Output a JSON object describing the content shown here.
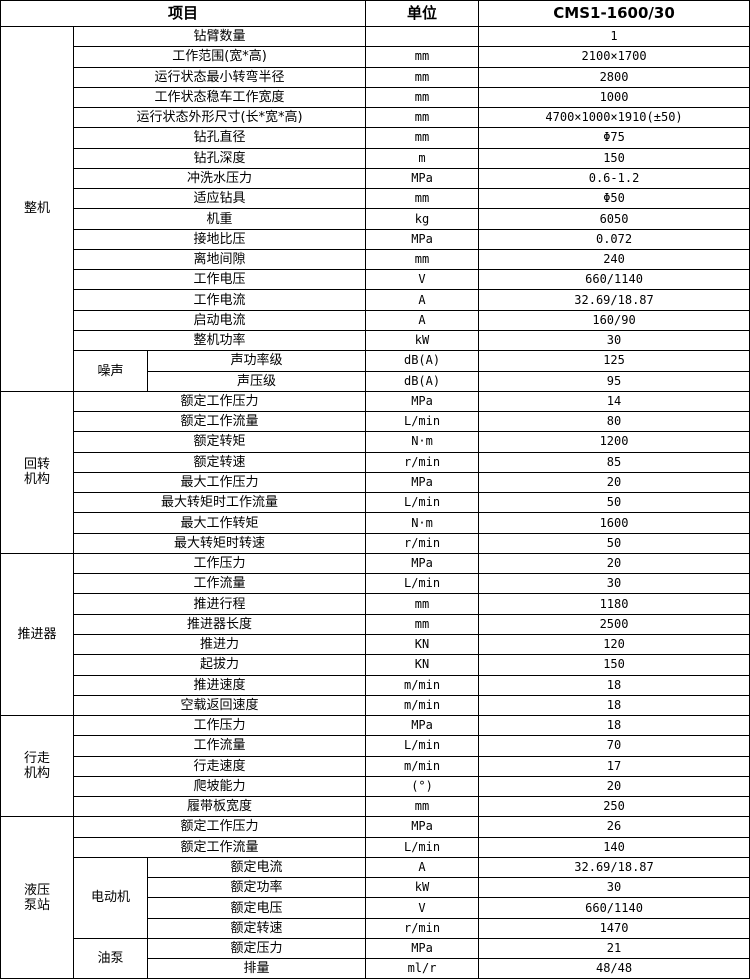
{
  "header": {
    "item": "项目",
    "unit": "单位",
    "model": "CMS1-1600/30"
  },
  "rows": [
    {
      "group": "整机",
      "sub": "",
      "item": "钻臂数量",
      "unit": "",
      "value": "1"
    },
    {
      "group": "整机",
      "sub": "",
      "item": "工作范围(宽*高)",
      "unit": "mm",
      "value": "2100×1700"
    },
    {
      "group": "整机",
      "sub": "",
      "item": "运行状态最小转弯半径",
      "unit": "mm",
      "value": "2800"
    },
    {
      "group": "整机",
      "sub": "",
      "item": "工作状态稳车工作宽度",
      "unit": "mm",
      "value": "1000"
    },
    {
      "group": "整机",
      "sub": "",
      "item": "运行状态外形尺寸(长*宽*高)",
      "unit": "mm",
      "value": "4700×1000×1910(±50)"
    },
    {
      "group": "整机",
      "sub": "",
      "item": "钻孔直径",
      "unit": "mm",
      "value": "Φ75"
    },
    {
      "group": "整机",
      "sub": "",
      "item": "钻孔深度",
      "unit": "m",
      "value": "150"
    },
    {
      "group": "整机",
      "sub": "",
      "item": "冲洗水压力",
      "unit": "MPa",
      "value": "0.6-1.2"
    },
    {
      "group": "整机",
      "sub": "",
      "item": "适应钻具",
      "unit": "mm",
      "value": "Φ50"
    },
    {
      "group": "整机",
      "sub": "",
      "item": "机重",
      "unit": "kg",
      "value": "6050"
    },
    {
      "group": "整机",
      "sub": "",
      "item": "接地比压",
      "unit": "MPa",
      "value": "0.072"
    },
    {
      "group": "整机",
      "sub": "",
      "item": "离地间隙",
      "unit": "mm",
      "value": "240"
    },
    {
      "group": "整机",
      "sub": "",
      "item": "工作电压",
      "unit": "V",
      "value": "660/1140"
    },
    {
      "group": "整机",
      "sub": "",
      "item": "工作电流",
      "unit": "A",
      "value": "32.69/18.87"
    },
    {
      "group": "整机",
      "sub": "",
      "item": "启动电流",
      "unit": "A",
      "value": "160/90"
    },
    {
      "group": "整机",
      "sub": "",
      "item": "整机功率",
      "unit": "kW",
      "value": "30"
    },
    {
      "group": "整机",
      "sub": "噪声",
      "item": "声功率级",
      "unit": "dB(A)",
      "value": "125"
    },
    {
      "group": "整机",
      "sub": "噪声",
      "item": "声压级",
      "unit": "dB(A)",
      "value": "95"
    },
    {
      "group": "回转\n机构",
      "sub": "",
      "item": "额定工作压力",
      "unit": "MPa",
      "value": "14"
    },
    {
      "group": "回转\n机构",
      "sub": "",
      "item": "额定工作流量",
      "unit": "L/min",
      "value": "80"
    },
    {
      "group": "回转\n机构",
      "sub": "",
      "item": "额定转矩",
      "unit": "N·m",
      "value": "1200"
    },
    {
      "group": "回转\n机构",
      "sub": "",
      "item": "额定转速",
      "unit": "r/min",
      "value": "85"
    },
    {
      "group": "回转\n机构",
      "sub": "",
      "item": "最大工作压力",
      "unit": "MPa",
      "value": "20"
    },
    {
      "group": "回转\n机构",
      "sub": "",
      "item": "最大转矩时工作流量",
      "unit": "L/min",
      "value": "50"
    },
    {
      "group": "回转\n机构",
      "sub": "",
      "item": "最大工作转矩",
      "unit": "N·m",
      "value": "1600"
    },
    {
      "group": "回转\n机构",
      "sub": "",
      "item": "最大转矩时转速",
      "unit": "r/min",
      "value": "50"
    },
    {
      "group": "推进器",
      "sub": "",
      "item": "工作压力",
      "unit": "MPa",
      "value": "20"
    },
    {
      "group": "推进器",
      "sub": "",
      "item": "工作流量",
      "unit": "L/min",
      "value": "30"
    },
    {
      "group": "推进器",
      "sub": "",
      "item": "推进行程",
      "unit": "mm",
      "value": "1180"
    },
    {
      "group": "推进器",
      "sub": "",
      "item": "推进器长度",
      "unit": "mm",
      "value": "2500"
    },
    {
      "group": "推进器",
      "sub": "",
      "item": "推进力",
      "unit": "KN",
      "value": "120"
    },
    {
      "group": "推进器",
      "sub": "",
      "item": "起拔力",
      "unit": "KN",
      "value": "150"
    },
    {
      "group": "推进器",
      "sub": "",
      "item": "推进速度",
      "unit": "m/min",
      "value": "18"
    },
    {
      "group": "推进器",
      "sub": "",
      "item": "空载返回速度",
      "unit": "m/min",
      "value": "18"
    },
    {
      "group": "行走\n机构",
      "sub": "",
      "item": "工作压力",
      "unit": "MPa",
      "value": "18"
    },
    {
      "group": "行走\n机构",
      "sub": "",
      "item": "工作流量",
      "unit": "L/min",
      "value": "70"
    },
    {
      "group": "行走\n机构",
      "sub": "",
      "item": "行走速度",
      "unit": "m/min",
      "value": "17"
    },
    {
      "group": "行走\n机构",
      "sub": "",
      "item": "爬坡能力",
      "unit": "(°)",
      "value": "20"
    },
    {
      "group": "行走\n机构",
      "sub": "",
      "item": "履带板宽度",
      "unit": "mm",
      "value": "250"
    },
    {
      "group": "液压\n泵站",
      "sub": "",
      "item": "额定工作压力",
      "unit": "MPa",
      "value": "26"
    },
    {
      "group": "液压\n泵站",
      "sub": "",
      "item": "额定工作流量",
      "unit": "L/min",
      "value": "140"
    },
    {
      "group": "液压\n泵站",
      "sub": "电动机",
      "item": "额定电流",
      "unit": "A",
      "value": "32.69/18.87"
    },
    {
      "group": "液压\n泵站",
      "sub": "电动机",
      "item": "额定功率",
      "unit": "kW",
      "value": "30"
    },
    {
      "group": "液压\n泵站",
      "sub": "电动机",
      "item": "额定电压",
      "unit": "V",
      "value": "660/1140"
    },
    {
      "group": "液压\n泵站",
      "sub": "电动机",
      "item": "额定转速",
      "unit": "r/min",
      "value": "1470"
    },
    {
      "group": "液压\n泵站",
      "sub": "油泵",
      "item": "额定压力",
      "unit": "MPa",
      "value": "21"
    },
    {
      "group": "液压\n泵站",
      "sub": "油泵",
      "item": "排量",
      "unit": "ml/r",
      "value": "48/48"
    }
  ]
}
